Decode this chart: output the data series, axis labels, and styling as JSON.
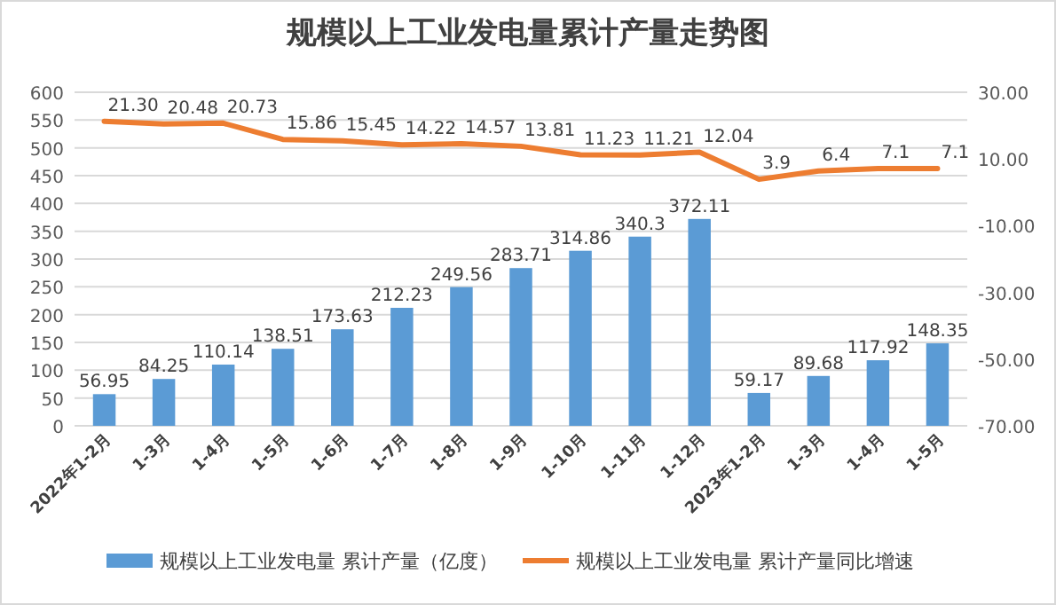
{
  "chart_data": {
    "type": "bar",
    "title": "规模以上工业发电量累计产量走势图",
    "categories": [
      "2022年1-2月",
      "1-3月",
      "1-4月",
      "1-5月",
      "1-6月",
      "1-7月",
      "1-8月",
      "1-9月",
      "1-10月",
      "1-11月",
      "1-12月",
      "2023年1-2月",
      "1-3月",
      "1-4月",
      "1-5月"
    ],
    "series": [
      {
        "name": "规模以上工业发电量 累计产量（亿度）",
        "color": "#5b9bd5",
        "values": [
          56.95,
          84.25,
          110.14,
          138.51,
          173.63,
          212.23,
          249.56,
          283.71,
          314.86,
          340.3,
          372.11,
          59.17,
          89.68,
          117.92,
          148.35
        ],
        "value_labels": [
          "56.95",
          "84.25",
          "110.14",
          "138.51",
          "173.63",
          "212.23",
          "249.56",
          "283.71",
          "314.86",
          "340.3",
          "372.11",
          "59.17",
          "89.68",
          "117.92",
          "148.35"
        ]
      },
      {
        "name": "规模以上工业发电量 累计产量同比增速",
        "type": "line",
        "axis": "y2",
        "color": "#ed7d31",
        "values": [
          21.3,
          20.48,
          20.73,
          15.86,
          15.45,
          14.22,
          14.57,
          13.81,
          11.23,
          11.21,
          12.04,
          3.9,
          6.4,
          7.1,
          7.1
        ],
        "value_labels": [
          "21.30",
          "20.48",
          "20.73",
          "15.86",
          "15.45",
          "14.22",
          "14.57",
          "13.81",
          "11.23",
          "11.21",
          "12.04",
          "3.9",
          "6.4",
          "7.1",
          "7.1"
        ]
      }
    ],
    "ylim": [
      0,
      600
    ],
    "yticks": [
      0,
      50,
      100,
      150,
      200,
      250,
      300,
      350,
      400,
      450,
      500,
      550,
      600
    ],
    "y2lim": [
      -70,
      30
    ],
    "y2ticks": [
      {
        "value": -70,
        "label": "-70.00"
      },
      {
        "value": -50,
        "label": "-50.00"
      },
      {
        "value": -30,
        "label": "-30.00"
      },
      {
        "value": -10,
        "label": "-10.00"
      },
      {
        "value": 10,
        "label": "10.00"
      },
      {
        "value": 30,
        "label": "30.00"
      }
    ],
    "grid": "y",
    "legend": "bottom",
    "marker": "none",
    "line_style": "solid"
  }
}
